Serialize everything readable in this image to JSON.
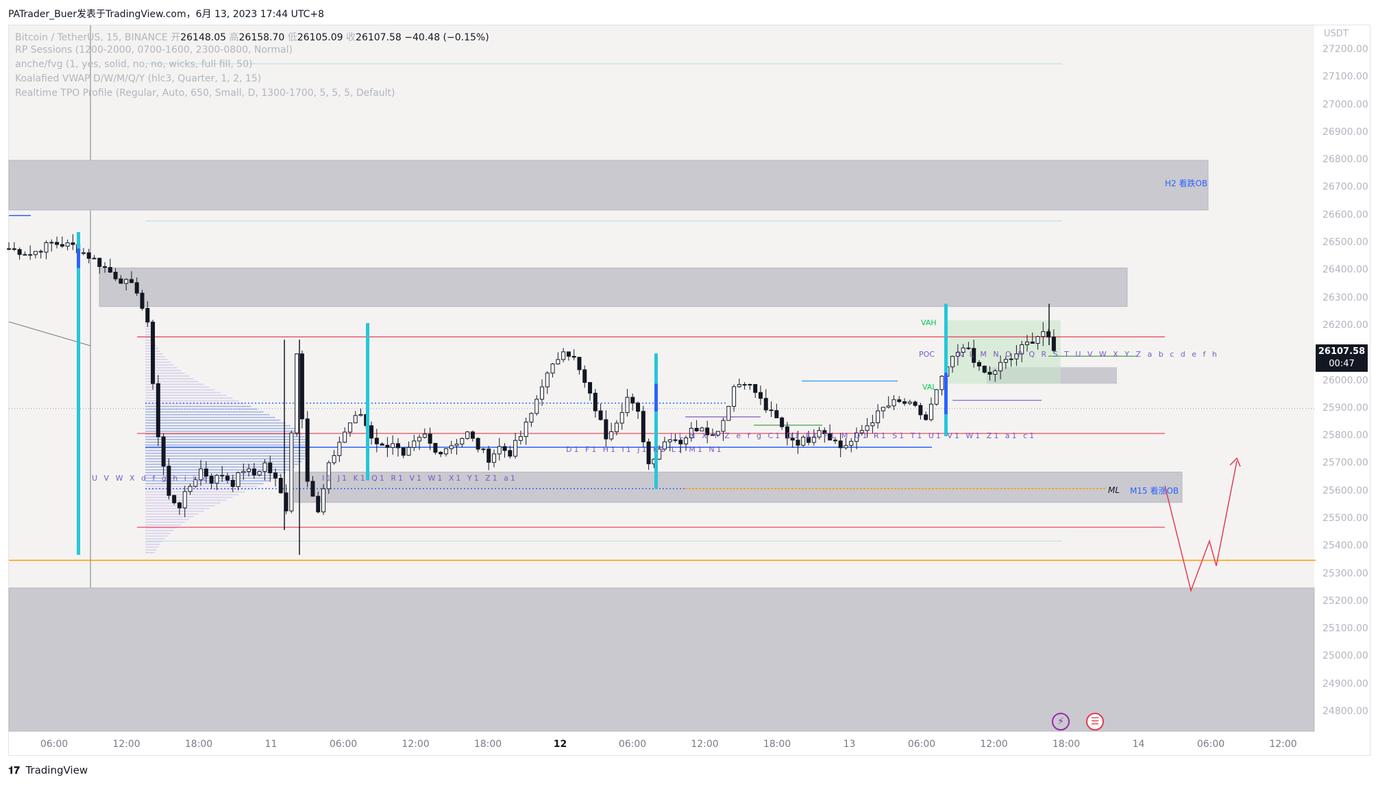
{
  "header": {
    "title": "PATrader_Buer发表于TradingView.com，6月 13, 2023 17:44 UTC+8"
  },
  "legend": {
    "symbol": "Bitcoin / TetherUS, 15, BINANCE",
    "open_label": "开",
    "open": "26148.05",
    "high_label": "高",
    "high": "26158.70",
    "low_label": "低",
    "low": "26105.09",
    "close_label": "收",
    "close": "26107.58",
    "change": "−40.48 (−0.15%)",
    "indicator1": "RP Sessions (1200-2000, 0700-1600, 2300-0800, Normal)",
    "indicator2": "anche/fvg (1, yes, solid, no, no, wicks, full fill, 50)",
    "indicator3": "Koalafied VWAP D/W/M/Q/Y  (hlc3, Quarter, 1, 2, 15)",
    "indicator4": "Realtime TPO Profile (Regular, Auto, 650, Small, D, 1300-1700, 5, 5, 5, Default)"
  },
  "price_badge": {
    "price": "26107.58",
    "countdown": "00:47"
  },
  "zones": {
    "h2": "H2 看跌OB",
    "m15": "M15 看涨OB",
    "ml": "ML"
  },
  "tpo": {
    "vah": "VAH",
    "poc": "POC",
    "val": "VAL",
    "row1": "U V W X d f g h i j k",
    "row2": "I1 J1 K1 Q1 R1 V1 W1 X1 Y1 Z1 a1",
    "row3": "D1 F1 H1 I1 J1 K1 L1 M1 N1",
    "row4": "J L N X Y Z e f g C1 D1 E1 F1 M Q1 R1 S1 T1 U1 V1 W1 Z1 a1 c1",
    "row5": "K L M N O P Q R S T U V W X Y Z a b c d e f h"
  },
  "footer": {
    "brand": "TradingView"
  },
  "colors": {
    "up": "#26a69a",
    "down": "#131722",
    "candle": "#131722",
    "zone": "#c9c9cf",
    "red_line": "#e53950",
    "orange_line": "#ff9800",
    "session_bar": "#26c6da",
    "blue": "#2962ff"
  },
  "chart_data": {
    "type": "candlestick",
    "symbol": "Bitcoin / TetherUS",
    "interval": "15",
    "exchange": "BINANCE",
    "y_unit": "USDT",
    "ylim": [
      24700,
      27250
    ],
    "y_ticks": [
      "27200.00",
      "27100.00",
      "27000.00",
      "26900.00",
      "26800.00",
      "26700.00",
      "26600.00",
      "26500.00",
      "26400.00",
      "26300.00",
      "26200.00",
      "26100.00",
      "26000.00",
      "25900.00",
      "25800.00",
      "25700.00",
      "25600.00",
      "25500.00",
      "25400.00",
      "25300.00",
      "25200.00",
      "25100.00",
      "25000.00",
      "24900.00",
      "24800.00"
    ],
    "x_ticks": [
      {
        "label": "06:00",
        "bold": false
      },
      {
        "label": "12:00",
        "bold": false
      },
      {
        "label": "18:00",
        "bold": false
      },
      {
        "label": "11",
        "bold": false
      },
      {
        "label": "06:00",
        "bold": false
      },
      {
        "label": "12:00",
        "bold": false
      },
      {
        "label": "18:00",
        "bold": false
      },
      {
        "label": "12",
        "bold": true
      },
      {
        "label": "06:00",
        "bold": false
      },
      {
        "label": "12:00",
        "bold": false
      },
      {
        "label": "18:00",
        "bold": false
      },
      {
        "label": "13",
        "bold": false
      },
      {
        "label": "06:00",
        "bold": false
      },
      {
        "label": "12:00",
        "bold": false
      },
      {
        "label": "18:00",
        "bold": false
      },
      {
        "label": "14",
        "bold": false
      },
      {
        "label": "06:00",
        "bold": false
      },
      {
        "label": "12:00",
        "bold": false
      }
    ],
    "close_path": [
      [
        0,
        26480
      ],
      [
        4,
        26460
      ],
      [
        8,
        26500
      ],
      [
        12,
        26490
      ],
      [
        16,
        26440
      ],
      [
        20,
        26380
      ],
      [
        24,
        26330
      ],
      [
        26,
        26200
      ],
      [
        28,
        25800
      ],
      [
        30,
        25580
      ],
      [
        32,
        25550
      ],
      [
        34,
        25620
      ],
      [
        36,
        25680
      ],
      [
        38,
        25640
      ],
      [
        40,
        25660
      ],
      [
        42,
        25630
      ],
      [
        44,
        25680
      ],
      [
        46,
        25660
      ],
      [
        48,
        25700
      ],
      [
        50,
        25640
      ],
      [
        52,
        25540
      ],
      [
        54,
        26100
      ],
      [
        56,
        25650
      ],
      [
        58,
        25520
      ],
      [
        60,
        25690
      ],
      [
        62,
        25780
      ],
      [
        64,
        25850
      ],
      [
        66,
        25880
      ],
      [
        68,
        25800
      ],
      [
        70,
        25760
      ],
      [
        72,
        25780
      ],
      [
        74,
        25720
      ],
      [
        76,
        25770
      ],
      [
        78,
        25800
      ],
      [
        80,
        25740
      ],
      [
        82,
        25760
      ],
      [
        84,
        25780
      ],
      [
        86,
        25810
      ],
      [
        88,
        25760
      ],
      [
        90,
        25720
      ],
      [
        92,
        25760
      ],
      [
        94,
        25740
      ],
      [
        96,
        25800
      ],
      [
        98,
        25880
      ],
      [
        100,
        25990
      ],
      [
        102,
        26050
      ],
      [
        104,
        26120
      ],
      [
        106,
        26080
      ],
      [
        108,
        25990
      ],
      [
        110,
        25900
      ],
      [
        112,
        25800
      ],
      [
        114,
        25860
      ],
      [
        116,
        25940
      ],
      [
        118,
        25880
      ],
      [
        120,
        25700
      ],
      [
        122,
        25760
      ],
      [
        124,
        25800
      ],
      [
        126,
        25780
      ],
      [
        128,
        25820
      ],
      [
        130,
        25840
      ],
      [
        132,
        25800
      ],
      [
        134,
        25860
      ],
      [
        136,
        25980
      ],
      [
        138,
        26000
      ],
      [
        140,
        25960
      ],
      [
        142,
        25900
      ],
      [
        144,
        25860
      ],
      [
        146,
        25800
      ],
      [
        148,
        25780
      ],
      [
        150,
        25790
      ],
      [
        152,
        25830
      ],
      [
        154,
        25800
      ],
      [
        156,
        25760
      ],
      [
        158,
        25780
      ],
      [
        160,
        25820
      ],
      [
        162,
        25860
      ],
      [
        164,
        25900
      ],
      [
        166,
        25920
      ],
      [
        168,
        25920
      ],
      [
        170,
        25900
      ],
      [
        172,
        25860
      ],
      [
        174,
        25960
      ],
      [
        176,
        26050
      ],
      [
        178,
        26100
      ],
      [
        180,
        26120
      ],
      [
        182,
        26040
      ],
      [
        184,
        26020
      ],
      [
        186,
        26060
      ],
      [
        188,
        26080
      ],
      [
        190,
        26120
      ],
      [
        192,
        26150
      ],
      [
        194,
        26180
      ],
      [
        196,
        26110
      ]
    ]
  }
}
